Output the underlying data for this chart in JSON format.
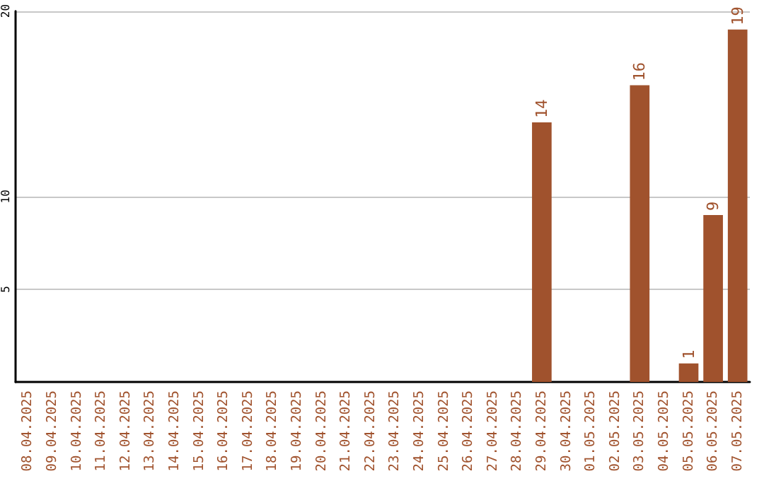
{
  "chart_data": {
    "type": "bar",
    "categories": [
      "08.04.2025",
      "09.04.2025",
      "10.04.2025",
      "11.04.2025",
      "12.04.2025",
      "13.04.2025",
      "14.04.2025",
      "15.04.2025",
      "16.04.2025",
      "17.04.2025",
      "18.04.2025",
      "19.04.2025",
      "20.04.2025",
      "21.04.2025",
      "22.04.2025",
      "23.04.2025",
      "24.04.2025",
      "25.04.2025",
      "26.04.2025",
      "27.04.2025",
      "28.04.2025",
      "29.04.2025",
      "30.04.2025",
      "01.05.2025",
      "02.05.2025",
      "03.05.2025",
      "04.05.2025",
      "05.05.2025",
      "06.05.2025",
      "07.05.2025"
    ],
    "values": [
      0,
      0,
      0,
      0,
      0,
      0,
      0,
      0,
      0,
      0,
      0,
      0,
      0,
      0,
      0,
      0,
      0,
      0,
      0,
      0,
      0,
      14,
      0,
      0,
      0,
      16,
      0,
      1,
      9,
      19
    ],
    "value_labels": [
      null,
      null,
      null,
      null,
      null,
      null,
      null,
      null,
      null,
      null,
      null,
      null,
      null,
      null,
      null,
      null,
      null,
      null,
      null,
      null,
      null,
      "14",
      null,
      null,
      null,
      "16",
      null,
      "1",
      "9",
      "19"
    ],
    "color": "#a0522d",
    "ylim": [
      0,
      20
    ],
    "yticks": [
      5,
      10,
      20
    ],
    "grid": "y"
  }
}
